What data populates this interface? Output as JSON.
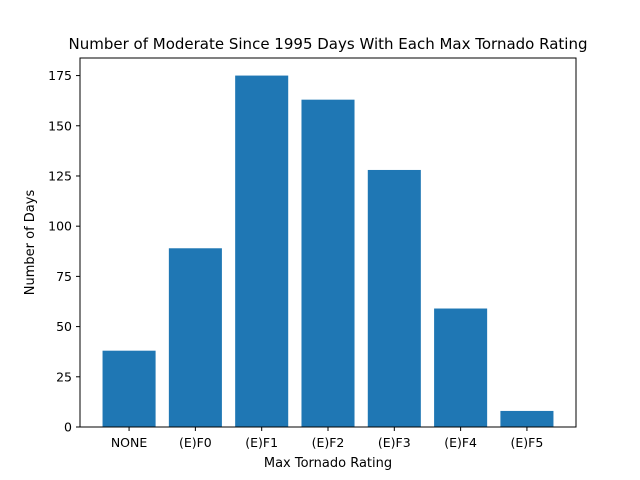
{
  "chart_data": {
    "type": "bar",
    "title": "Number of Moderate Since 1995 Days With Each Max Tornado Rating",
    "xlabel": "Max Tornado Rating",
    "ylabel": "Number of Days",
    "categories": [
      "NONE",
      "(E)F0",
      "(E)F1",
      "(E)F2",
      "(E)F3",
      "(E)F4",
      "(E)F5"
    ],
    "values": [
      38,
      89,
      175,
      163,
      128,
      59,
      8
    ],
    "ylim": [
      0,
      183.75
    ],
    "yticks": [
      0,
      25,
      50,
      75,
      100,
      125,
      150,
      175
    ],
    "bar_color": "#1f77b4",
    "grid": false,
    "legend": "none"
  }
}
